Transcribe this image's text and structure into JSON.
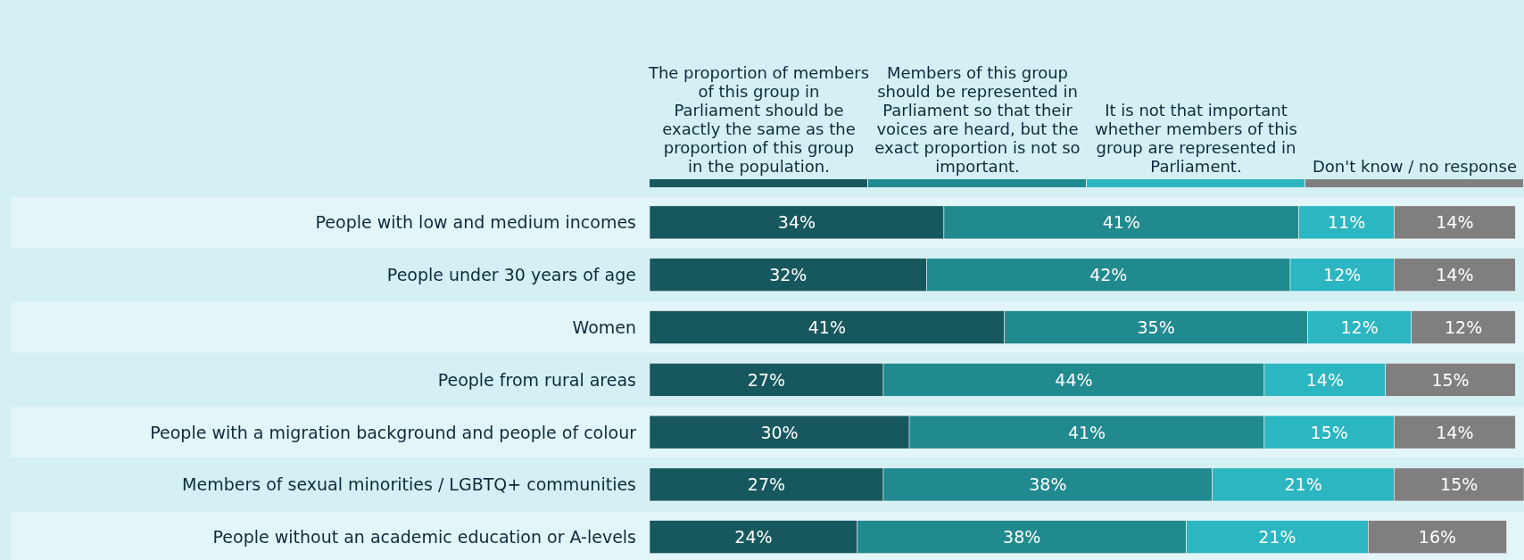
{
  "chart_data": {
    "type": "bar",
    "orientation": "horizontal",
    "stacked": true,
    "legend": "top",
    "xlim": [
      0,
      101
    ],
    "tick_labels": "y",
    "categories": [
      "People with low and medium incomes",
      "People under 30 years of age",
      "Women",
      "People from rural areas",
      "People with a migration background and people of colour",
      "Members of sexual minorities / LGBTQ+ communities",
      "People without an academic education or A-levels"
    ],
    "series": [
      {
        "name": "The proportion of members of this group in Parliament should be exactly the same as the proportion of this group in the population.",
        "color": "#17585e",
        "values": [
          34,
          32,
          41,
          27,
          30,
          27,
          24
        ],
        "value_labels": [
          "34%",
          "32%",
          "41%",
          "27%",
          "30%",
          "27%",
          "24%"
        ]
      },
      {
        "name": "Members of this group should be represented in Parliament so that their voices are heard, but the exact proportion is not so important.",
        "color": "#218a8f",
        "values": [
          41,
          42,
          35,
          44,
          41,
          38,
          38
        ],
        "value_labels": [
          "41%",
          "42%",
          "35%",
          "44%",
          "41%",
          "38%",
          "38%"
        ]
      },
      {
        "name": "It is not that important whether members of this group are represented in Parliament.",
        "color": "#2bb6c1",
        "values": [
          11,
          12,
          12,
          14,
          15,
          21,
          21
        ],
        "value_labels": [
          "11%",
          "12%",
          "12%",
          "14%",
          "15%",
          "21%",
          "21%"
        ]
      },
      {
        "name": "Don't know / no response",
        "color": "#7f7f7f",
        "values": [
          14,
          14,
          12,
          15,
          14,
          15,
          16
        ],
        "value_labels": [
          "14%",
          "14%",
          "12%",
          "15%",
          "14%",
          "15%",
          "16%"
        ]
      }
    ]
  }
}
